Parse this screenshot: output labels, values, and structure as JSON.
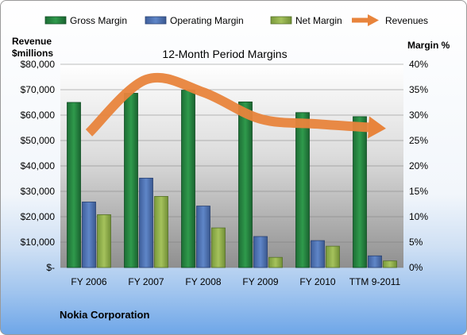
{
  "chart_data": {
    "type": "bar",
    "title": "12-Month Period Margins",
    "categories": [
      "FY 2006",
      "FY 2007",
      "FY 2008",
      "FY 2009",
      "FY 2010",
      "TTM 9-2011"
    ],
    "series": [
      {
        "name": "Gross Margin",
        "type": "bar",
        "axis": "right",
        "color": "#1f7a3a",
        "values": [
          32.5,
          34.3,
          34.9,
          32.6,
          30.5,
          29.7
        ]
      },
      {
        "name": "Operating Margin",
        "type": "bar",
        "axis": "right",
        "color": "#4a6fb0",
        "values": [
          12.9,
          17.6,
          12.1,
          6.1,
          5.3,
          2.3
        ]
      },
      {
        "name": "Net Margin",
        "type": "bar",
        "axis": "right",
        "color": "#8aaa46",
        "values": [
          10.4,
          14.0,
          7.8,
          2.0,
          4.2,
          1.3
        ]
      },
      {
        "name": "Revenues",
        "type": "line",
        "axis": "left",
        "color": "#e8843c",
        "values": [
          53000,
          74000,
          69000,
          58500,
          56500,
          55000
        ]
      }
    ],
    "y_left": {
      "label_line1": "Revenue",
      "label_line2": "$millions",
      "min": 0,
      "max": 80000,
      "ticks": [
        "$-",
        "$10,000",
        "$20,000",
        "$30,000",
        "$40,000",
        "$50,000",
        "$60,000",
        "$70,000",
        "$80,000"
      ]
    },
    "y_right": {
      "label": "Margin %",
      "min": 0,
      "max": 40,
      "ticks": [
        "0%",
        "5%",
        "10%",
        "15%",
        "20%",
        "25%",
        "30%",
        "35%",
        "40%"
      ]
    },
    "grid": true,
    "legend_position": "top"
  },
  "footer": {
    "company": "Nokia Corporation"
  }
}
